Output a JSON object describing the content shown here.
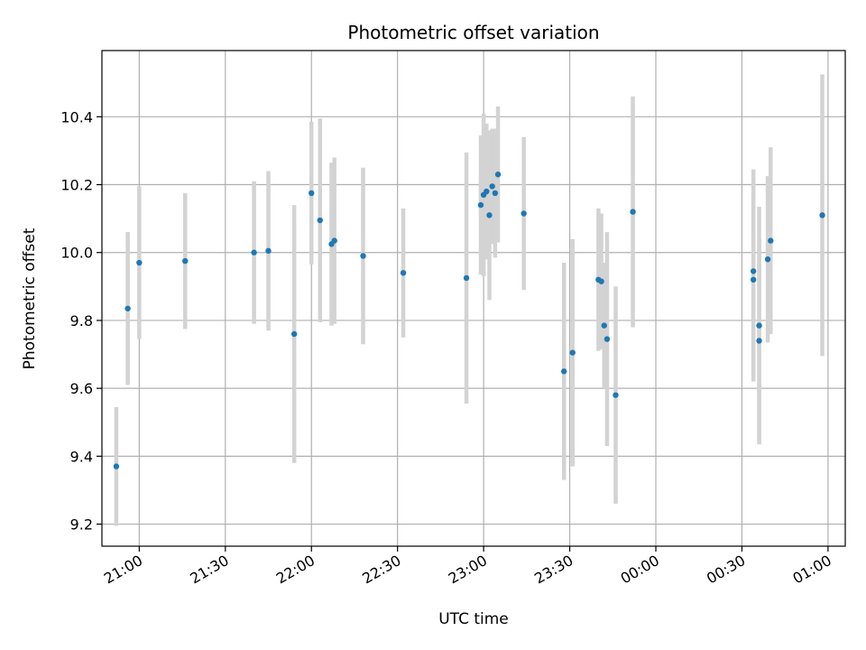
{
  "chart_data": {
    "type": "scatter",
    "title": "Photometric offset variation",
    "xlabel": "UTC time",
    "ylabel": "Photometric offset",
    "x_axis": {
      "kind": "time",
      "range": [
        "20:47",
        "01:06"
      ],
      "ticks": [
        "21:00",
        "21:30",
        "22:00",
        "22:30",
        "23:00",
        "23:30",
        "00:00",
        "00:30",
        "01:00"
      ]
    },
    "y_axis": {
      "range": [
        9.135,
        10.595
      ],
      "ticks": [
        "9.2",
        "9.4",
        "9.6",
        "9.8",
        "10.0",
        "10.2",
        "10.4"
      ]
    },
    "grid": true,
    "colors": {
      "marker": "#1f77b4",
      "errorbar": "#d3d3d3",
      "grid": "#b0b0b0"
    },
    "series": [
      {
        "points": [
          {
            "t": "20:52",
            "y": 9.37,
            "err": 0.175
          },
          {
            "t": "20:56",
            "y": 9.835,
            "err": 0.225
          },
          {
            "t": "21:00",
            "y": 9.97,
            "err": 0.225
          },
          {
            "t": "21:16",
            "y": 9.975,
            "err": 0.2
          },
          {
            "t": "21:40",
            "y": 10.0,
            "err": 0.21
          },
          {
            "t": "21:45",
            "y": 10.005,
            "err": 0.235
          },
          {
            "t": "21:54",
            "y": 9.76,
            "err": 0.38
          },
          {
            "t": "22:00",
            "y": 10.175,
            "err": 0.21
          },
          {
            "t": "22:03",
            "y": 10.095,
            "err": 0.3
          },
          {
            "t": "22:07",
            "y": 10.025,
            "err": 0.24
          },
          {
            "t": "22:08",
            "y": 10.035,
            "err": 0.245
          },
          {
            "t": "22:18",
            "y": 9.99,
            "err": 0.26
          },
          {
            "t": "22:32",
            "y": 9.94,
            "err": 0.19
          },
          {
            "t": "22:54",
            "y": 9.925,
            "err": 0.37
          },
          {
            "t": "22:59",
            "y": 10.14,
            "err": 0.205
          },
          {
            "t": "23:00",
            "y": 10.17,
            "err": 0.24
          },
          {
            "t": "23:01",
            "y": 10.18,
            "err": 0.2
          },
          {
            "t": "23:02",
            "y": 10.11,
            "err": 0.25
          },
          {
            "t": "23:03",
            "y": 10.195,
            "err": 0.17
          },
          {
            "t": "23:04",
            "y": 10.175,
            "err": 0.19
          },
          {
            "t": "23:05",
            "y": 10.23,
            "err": 0.2
          },
          {
            "t": "23:14",
            "y": 10.115,
            "err": 0.225
          },
          {
            "t": "23:28",
            "y": 9.65,
            "err": 0.32
          },
          {
            "t": "23:31",
            "y": 9.705,
            "err": 0.335
          },
          {
            "t": "23:40",
            "y": 9.92,
            "err": 0.21
          },
          {
            "t": "23:41",
            "y": 9.915,
            "err": 0.2
          },
          {
            "t": "23:42",
            "y": 9.785,
            "err": 0.185
          },
          {
            "t": "23:43",
            "y": 9.745,
            "err": 0.315
          },
          {
            "t": "23:46",
            "y": 9.58,
            "err": 0.32
          },
          {
            "t": "23:52",
            "y": 10.12,
            "err": 0.34
          },
          {
            "t": "00:34",
            "y": 9.92,
            "err": 0.3
          },
          {
            "t": "00:34",
            "y": 9.945,
            "err": 0.3
          },
          {
            "t": "00:36",
            "y": 9.74,
            "err": 0.3
          },
          {
            "t": "00:36",
            "y": 9.785,
            "err": 0.35
          },
          {
            "t": "00:39",
            "y": 9.98,
            "err": 0.245
          },
          {
            "t": "00:40",
            "y": 10.035,
            "err": 0.275
          },
          {
            "t": "00:58",
            "y": 10.11,
            "err": 0.415
          }
        ]
      }
    ]
  }
}
